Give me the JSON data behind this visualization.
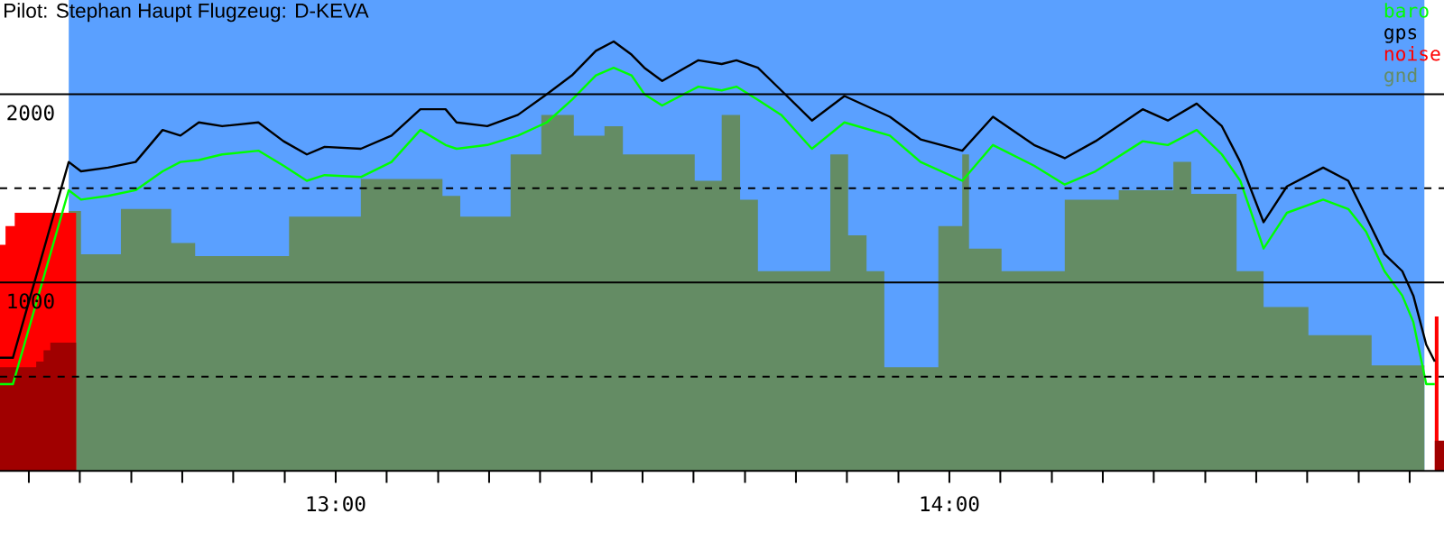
{
  "chart_data": {
    "type": "area",
    "title": "Pilot: Stephan Haupt Flugzeug: D-KEVA",
    "xlim": [
      12.453,
      14.806
    ],
    "ylim": [
      0,
      2500
    ],
    "xticks": [
      {
        "value": 12.5,
        "label": null
      },
      {
        "value": 12.583,
        "label": null
      },
      {
        "value": 12.667,
        "label": null
      },
      {
        "value": 12.75,
        "label": null
      },
      {
        "value": 12.833,
        "label": null
      },
      {
        "value": 12.917,
        "label": null
      },
      {
        "value": 13,
        "label": "13:00"
      },
      {
        "value": 13.083,
        "label": null
      },
      {
        "value": 13.167,
        "label": null
      },
      {
        "value": 13.25,
        "label": null
      },
      {
        "value": 13.333,
        "label": null
      },
      {
        "value": 13.417,
        "label": null
      },
      {
        "value": 13.5,
        "label": null
      },
      {
        "value": 13.583,
        "label": null
      },
      {
        "value": 13.667,
        "label": null
      },
      {
        "value": 13.75,
        "label": null
      },
      {
        "value": 13.833,
        "label": null
      },
      {
        "value": 13.917,
        "label": null
      },
      {
        "value": 14,
        "label": "14:00"
      },
      {
        "value": 14.083,
        "label": null
      },
      {
        "value": 14.167,
        "label": null
      },
      {
        "value": 14.25,
        "label": null
      },
      {
        "value": 14.333,
        "label": null
      },
      {
        "value": 14.417,
        "label": null
      },
      {
        "value": 14.5,
        "label": null
      },
      {
        "value": 14.583,
        "label": null
      },
      {
        "value": 14.667,
        "label": null
      },
      {
        "value": 14.75,
        "label": null
      }
    ],
    "yticks": [
      {
        "value": 500,
        "label": null
      },
      1000,
      {
        "value": 1500,
        "label": null
      },
      2000
    ],
    "grid": "y",
    "legend": "top right",
    "bands": [
      {
        "axis": "x",
        "from": 12.565,
        "to": 14.774,
        "color": "#5aa0ff"
      }
    ],
    "series": [
      {
        "name": "gnd",
        "color": "#648c64",
        "x": [
          12.565,
          12.585,
          12.65,
          12.732,
          12.771,
          12.924,
          13.041,
          13.174,
          13.203,
          13.285,
          13.335,
          13.388,
          13.438,
          13.468,
          13.585,
          13.629,
          13.659,
          13.688,
          13.806,
          13.835,
          13.865,
          13.894,
          13.982,
          14.021,
          14.032,
          14.085,
          14.188,
          14.276,
          14.365,
          14.394,
          14.468,
          14.512,
          14.585,
          14.688,
          14.774
        ],
        "values": [
          1380,
          1150,
          1390,
          1210,
          1140,
          1350,
          1550,
          1460,
          1350,
          1680,
          1890,
          1780,
          1830,
          1680,
          1540,
          1890,
          1440,
          1060,
          1680,
          1250,
          1060,
          550,
          1300,
          1680,
          1180,
          1060,
          1440,
          1490,
          1640,
          1470,
          1060,
          870,
          720,
          560,
          560
        ]
      },
      {
        "name": "noise",
        "color": "#ff0000",
        "x": [
          12.453,
          12.462,
          12.477,
          12.577,
          12.578,
          14.791,
          14.797
        ],
        "values": [
          1200,
          1300,
          1370,
          1370,
          null,
          820,
          820
        ]
      },
      {
        "color": "#a00000",
        "x": [
          12.453,
          12.512,
          12.524,
          12.535,
          12.559,
          12.577,
          12.578,
          14.791,
          14.806
        ],
        "values": [
          550,
          580,
          640,
          680,
          680,
          680,
          null,
          160,
          160
        ]
      },
      {
        "name": "gps",
        "type": "line",
        "color": "#000000",
        "x": [
          12.453,
          12.474,
          12.565,
          12.585,
          12.629,
          12.674,
          12.718,
          12.747,
          12.777,
          12.815,
          12.874,
          12.915,
          12.953,
          12.982,
          13.041,
          13.091,
          13.138,
          13.179,
          13.197,
          13.247,
          13.297,
          13.344,
          13.385,
          13.424,
          13.453,
          13.482,
          13.503,
          13.532,
          13.591,
          13.629,
          13.653,
          13.688,
          13.726,
          13.776,
          13.829,
          13.903,
          13.953,
          14.021,
          14.071,
          14.138,
          14.188,
          14.238,
          14.315,
          14.356,
          14.403,
          14.444,
          14.474,
          14.512,
          14.55,
          14.609,
          14.65,
          14.679,
          14.709,
          14.738,
          14.756,
          14.777,
          14.791
        ],
        "values": [
          600,
          600,
          1640,
          1590,
          1610,
          1640,
          1810,
          1780,
          1850,
          1830,
          1850,
          1750,
          1680,
          1720,
          1710,
          1780,
          1920,
          1920,
          1850,
          1830,
          1890,
          2000,
          2100,
          2230,
          2280,
          2210,
          2140,
          2070,
          2180,
          2160,
          2180,
          2140,
          2020,
          1860,
          1990,
          1880,
          1760,
          1700,
          1880,
          1730,
          1660,
          1750,
          1920,
          1860,
          1950,
          1830,
          1640,
          1320,
          1510,
          1610,
          1540,
          1350,
          1150,
          1060,
          930,
          670,
          580
        ]
      },
      {
        "name": "baro",
        "type": "line",
        "color": "#00ff00",
        "x": [
          12.453,
          12.474,
          12.565,
          12.585,
          12.629,
          12.674,
          12.718,
          12.747,
          12.777,
          12.815,
          12.874,
          12.915,
          12.953,
          12.982,
          13.041,
          13.091,
          13.138,
          13.179,
          13.197,
          13.247,
          13.297,
          13.344,
          13.385,
          13.424,
          13.453,
          13.482,
          13.503,
          13.532,
          13.591,
          13.629,
          13.653,
          13.688,
          13.726,
          13.776,
          13.829,
          13.903,
          13.953,
          14.021,
          14.071,
          14.138,
          14.188,
          14.238,
          14.315,
          14.356,
          14.403,
          14.444,
          14.474,
          14.512,
          14.55,
          14.609,
          14.65,
          14.679,
          14.709,
          14.738,
          14.756,
          14.777,
          14.791
        ],
        "values": [
          460,
          460,
          1490,
          1440,
          1460,
          1490,
          1590,
          1640,
          1650,
          1680,
          1700,
          1620,
          1540,
          1570,
          1560,
          1640,
          1810,
          1730,
          1710,
          1730,
          1780,
          1850,
          1970,
          2100,
          2140,
          2100,
          2000,
          1940,
          2040,
          2020,
          2040,
          1970,
          1890,
          1710,
          1850,
          1780,
          1640,
          1540,
          1730,
          1620,
          1520,
          1590,
          1750,
          1730,
          1810,
          1680,
          1540,
          1180,
          1370,
          1440,
          1390,
          1270,
          1060,
          930,
          790,
          460,
          460
        ]
      }
    ]
  }
}
